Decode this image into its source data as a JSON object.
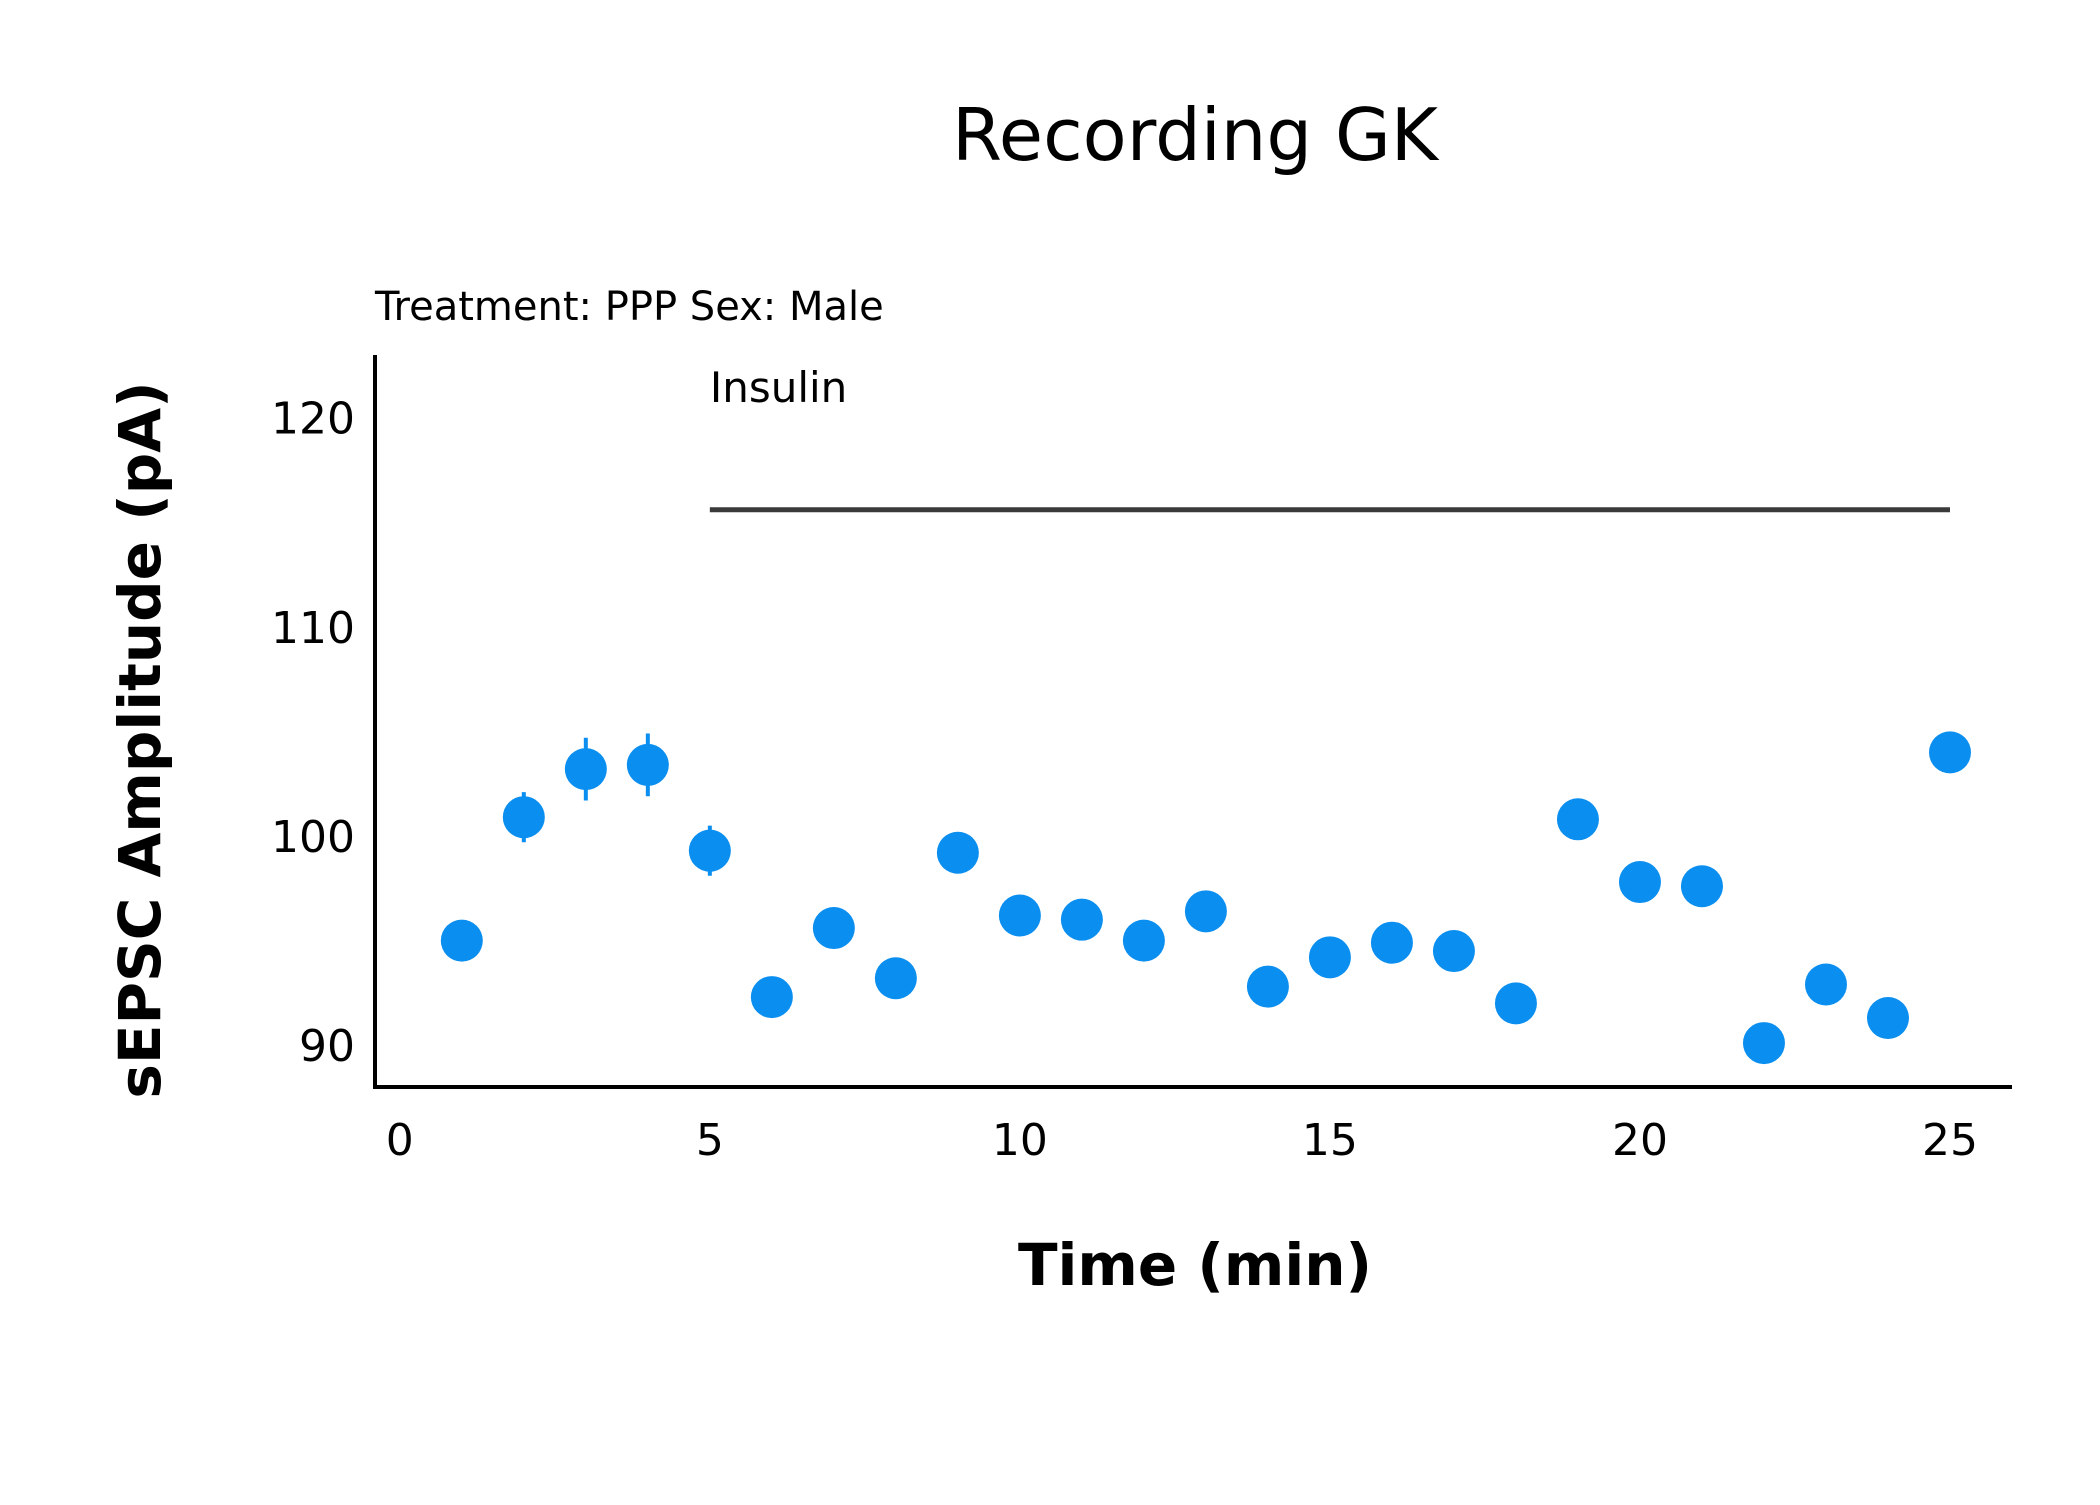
{
  "chart_data": {
    "type": "scatter",
    "title": "Recording GK",
    "subtitle": "Treatment: PPP  Sex: Male",
    "xlabel": "Time (min)",
    "ylabel": "sEPSC Amplitude (pA)",
    "xlim": [
      -0.4,
      26.0
    ],
    "ylim": [
      88.0,
      123.0
    ],
    "x_ticks": [
      0,
      5,
      10,
      15,
      20,
      25
    ],
    "y_ticks": [
      90,
      100,
      110,
      120
    ],
    "grid": false,
    "marker_color": "#0a8ef0",
    "series": [
      {
        "x": [
          1,
          2,
          3,
          4,
          5,
          6,
          7,
          8,
          9,
          10,
          11,
          12,
          13,
          14,
          15,
          16,
          17,
          18,
          19,
          20,
          21,
          22,
          23,
          24,
          25
        ],
        "y": [
          95.0,
          100.9,
          103.2,
          103.4,
          99.3,
          92.3,
          95.6,
          93.2,
          99.2,
          96.2,
          96.0,
          95.0,
          96.4,
          92.8,
          94.2,
          94.9,
          94.5,
          92.0,
          100.8,
          97.8,
          97.6,
          90.1,
          92.9,
          91.3,
          104.0
        ],
        "error": [
          0,
          1.2,
          1.5,
          1.5,
          1.2,
          0,
          0,
          0,
          0,
          0,
          0,
          0,
          0,
          0,
          0,
          0,
          0,
          0,
          0,
          0,
          0,
          0,
          0,
          0,
          0
        ]
      }
    ],
    "annotations": [
      {
        "text": "Insulin",
        "x_start": 5,
        "x_end": 25,
        "y": 115.6
      }
    ]
  }
}
